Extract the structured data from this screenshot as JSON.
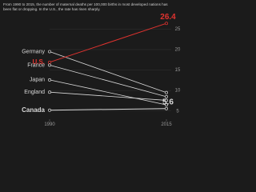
{
  "chart_data": {
    "type": "slope",
    "subtitle": "From 1990 to 2015, the number of maternal deaths per 100,000 births in most developed nations has been flat or dropping. In the U.S., the rate has risen sharply.",
    "categories": [
      "1990",
      "2015"
    ],
    "series": [
      {
        "name": "Germany",
        "color": "#d8d8d8",
        "values": [
          19.5,
          9.5
        ]
      },
      {
        "name": "U.S.",
        "color": "#e0332f",
        "values": [
          16.9,
          26.4
        ]
      },
      {
        "name": "France",
        "color": "#d8d8d8",
        "values": [
          16.2,
          8.5
        ]
      },
      {
        "name": "Japan",
        "color": "#d8d8d8",
        "values": [
          12.6,
          6.5
        ]
      },
      {
        "name": "England",
        "color": "#d8d8d8",
        "values": [
          9.6,
          7.6
        ]
      },
      {
        "name": "Canada",
        "color": "#d8d8d8",
        "values": [
          5.2,
          5.6
        ]
      }
    ],
    "ylim": [
      3,
      28
    ],
    "yticks": [
      5,
      10,
      15,
      20,
      25
    ],
    "grid": true
  }
}
